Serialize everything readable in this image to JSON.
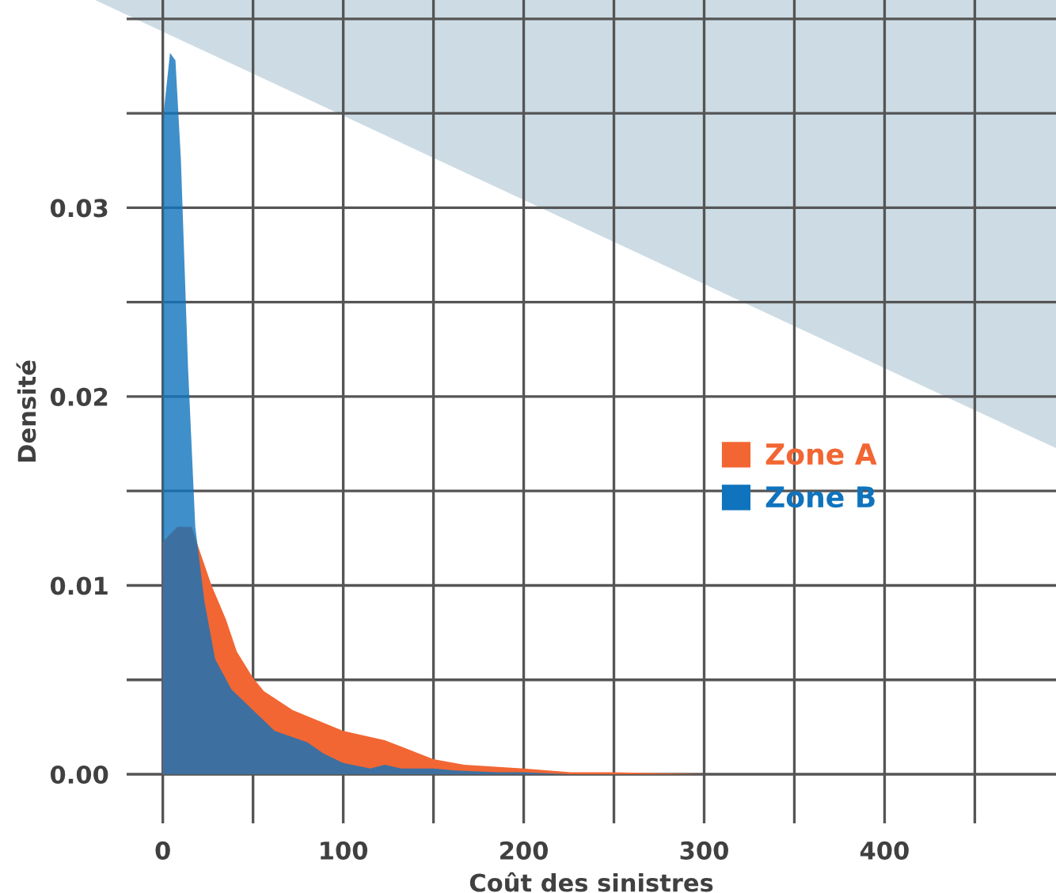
{
  "chart_data": {
    "type": "area",
    "xlabel": "Coût des sinistres",
    "ylabel": "Densité",
    "xlim": [
      -20,
      495
    ],
    "ylim": [
      -0.0026,
      0.041
    ],
    "xticks": [
      0,
      {
        "value": 50,
        "label": null
      },
      100,
      {
        "value": 150,
        "label": null
      },
      200,
      {
        "value": 250,
        "label": null
      },
      300,
      {
        "value": 350,
        "label": null
      },
      400,
      {
        "value": 450,
        "label": null
      }
    ],
    "yticks": [
      {
        "value": 0,
        "label": "0.00"
      },
      {
        "value": 0.005,
        "label": null
      },
      {
        "value": 0.01,
        "label": "0.01"
      },
      {
        "value": 0.015,
        "label": null
      },
      {
        "value": 0.02,
        "label": "0.02"
      },
      {
        "value": 0.025,
        "label": null
      },
      {
        "value": 0.03,
        "label": "0.03"
      },
      {
        "value": 0.035,
        "label": null
      },
      {
        "value": 0.04,
        "label": null
      }
    ],
    "grid": true,
    "legend": "right",
    "series": [
      {
        "name": "Zone A",
        "color": "#f26633",
        "x": [
          0,
          8,
          16,
          18,
          27,
          35,
          41,
          50,
          56,
          72,
          100,
          123,
          150,
          167,
          200,
          226,
          250,
          300
        ],
        "values": [
          0.0123,
          0.0131,
          0.0131,
          0.0125,
          0.01,
          0.0082,
          0.0065,
          0.0051,
          0.0044,
          0.0034,
          0.0023,
          0.0018,
          0.0008,
          0.0005,
          0.0003,
          0.0001,
          0.0001,
          0
        ]
      },
      {
        "name": "Zone B",
        "color": "#0f73bd",
        "x": [
          0,
          4,
          7,
          10,
          14,
          18,
          23,
          29,
          38,
          50,
          62,
          80,
          89,
          100,
          115,
          123,
          132,
          150,
          162,
          185,
          200,
          226,
          300
        ],
        "values": [
          0.0346,
          0.0382,
          0.0378,
          0.0326,
          0.0215,
          0.0131,
          0.0092,
          0.0061,
          0.0045,
          0.0034,
          0.0023,
          0.0017,
          0.0011,
          0.0006,
          0.0003,
          0.0005,
          0.0003,
          0.0003,
          0.0002,
          0.0001,
          0.0001,
          0,
          0
        ]
      }
    ]
  }
}
